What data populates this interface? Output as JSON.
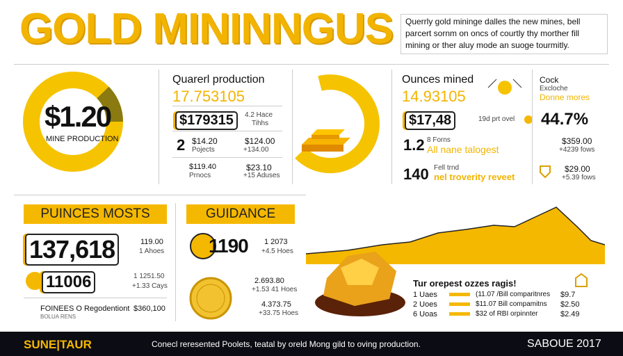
{
  "header": {
    "title": "GOLD MININNGUS",
    "intro": "Querrly gold mininge dalles the new mines, bell parcert sornm on oncs of courtly thy morther fill mining or ther aluy mode an suoge tourmitly."
  },
  "donut": {
    "value": "$1.20",
    "label": "MINE PRODUCTION"
  },
  "production": {
    "title": "Quarerl production",
    "total": "17.753105",
    "rows": [
      {
        "badge": "$179315",
        "value": "4.2 Hace",
        "note": "Tihhs"
      },
      {
        "badge": "2",
        "value": "$14.20",
        "sub": "Pojects",
        "right": "$124.00",
        "note": "+134.00"
      },
      {
        "badge": "$119.40",
        "sub": "Prnocs",
        "right": "$23.10",
        "note": "+15 Aduses"
      }
    ]
  },
  "ounces": {
    "title": "Ounces mined",
    "total": "14.93105",
    "rows": [
      {
        "badge": "$17,48",
        "note": "19d prt ovel"
      },
      {
        "badge": "1.2",
        "sub": "8 Forns",
        "label": "All nane talogest"
      },
      {
        "badge": "140",
        "sub": "Fell trnd",
        "label": "nel troverity reveet"
      }
    ]
  },
  "side": {
    "title": "Cock",
    "subtitle": "Excloche",
    "accent": "Donne mores",
    "percent": "44.7%",
    "rows": [
      {
        "value": "$359.00",
        "note": "+4239 fows"
      },
      {
        "value": "$29.00",
        "note": "+5.39 fows"
      }
    ]
  },
  "pounces": {
    "title": "PUINCES MOSTS",
    "big": "137,618",
    "big_value": "119.00",
    "big_note": "1 Ahoes",
    "second": "11006",
    "second_value": "1 1251.50",
    "second_note": "+1.33 Cays",
    "foot_label": "FOINEES O Regodentiont",
    "foot_sub": "BOLUA RENS",
    "foot_value": "$360,100"
  },
  "guidance": {
    "title": "GUIDANCE",
    "big": "1190",
    "rows": [
      {
        "value": "1 2073",
        "note": "+4.5 Hoes"
      },
      {
        "value": "2.693.80",
        "note": "+1.53 41 Hoes"
      },
      {
        "value": "4.373.75",
        "note": "+33.75 Hoes"
      }
    ]
  },
  "table": {
    "title": "Tur orepest ozzes ragis!",
    "rows": [
      [
        "1 Uaes",
        "(11.07 /Bill comparitnres",
        "$9.7"
      ],
      [
        "2 Uoes",
        "$11.07 Bill compamitns",
        "$2.50"
      ],
      [
        "6 Uoas",
        "$32 of RBI orpinnter",
        "$2.49"
      ]
    ]
  },
  "footer": {
    "brand": "SUNE|TAUR",
    "text": "Conecl reresented Poolets, teatal by oreld Mong gild to oving production.",
    "year": "SABOUE 2017"
  }
}
